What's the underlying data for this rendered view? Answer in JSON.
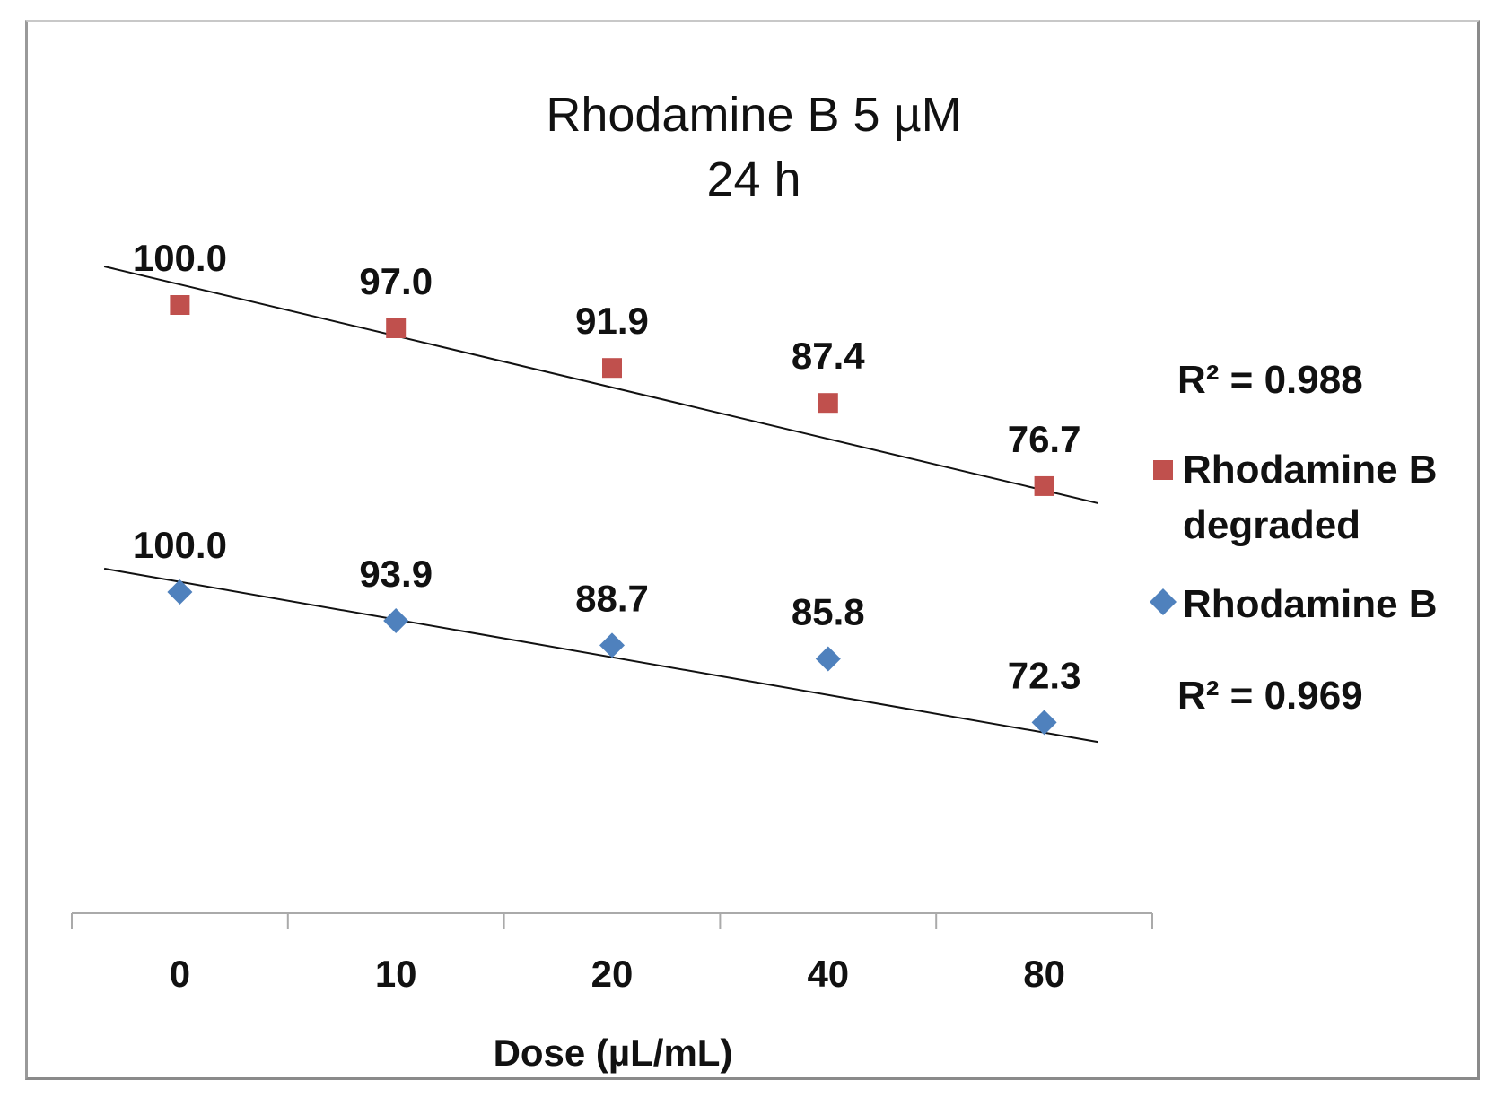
{
  "chart_data": {
    "type": "scatter",
    "title": "Rhodamine B 5 µM",
    "subtitle": "24 h",
    "xlabel": "Dose (µL/mL)",
    "ylabel": "",
    "categories": [
      "0",
      "10",
      "20",
      "40",
      "80"
    ],
    "series": [
      {
        "name": "Rhodamine B degraded",
        "legend_lines": [
          "Rhodamine B",
          "degraded"
        ],
        "marker": "square",
        "color": "#c0504d",
        "values": [
          100.0,
          97.0,
          91.9,
          87.4,
          76.7
        ],
        "labels": [
          "100.0",
          "97.0",
          "91.9",
          "87.4",
          "76.7"
        ],
        "r_squared": "R² = 0.988"
      },
      {
        "name": "Rhodamine B",
        "legend_lines": [
          "Rhodamine B"
        ],
        "marker": "diamond",
        "color": "#4f81bd",
        "values": [
          100.0,
          93.9,
          88.7,
          85.8,
          72.3
        ],
        "labels": [
          "100.0",
          "93.9",
          "88.7",
          "85.8",
          "72.3"
        ],
        "r_squared": "R² = 0.969"
      }
    ],
    "trendline_color": "#111111",
    "legend_position": "right"
  }
}
